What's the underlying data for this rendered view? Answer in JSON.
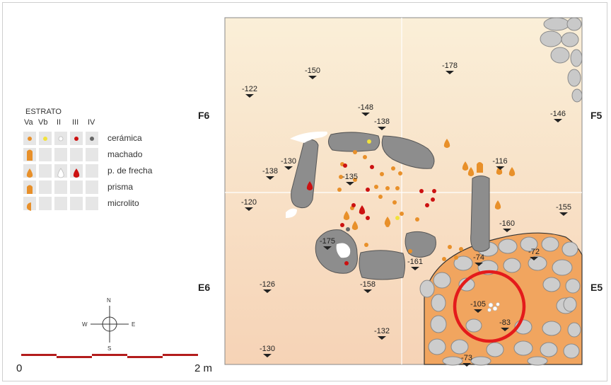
{
  "legend": {
    "title": "ESTRATO",
    "strata": [
      "Va",
      "Vb",
      "II",
      "III",
      "IV"
    ],
    "rows": [
      {
        "label": "cerámica",
        "symbols": [
          "orange-dot",
          "yellow-dot",
          "white-dot",
          "red-dot",
          "grey-dot"
        ]
      },
      {
        "label": "machado",
        "symbols": [
          "orange-axe",
          "",
          "",
          "",
          ""
        ]
      },
      {
        "label": "p. de frecha",
        "symbols": [
          "orange-drop",
          "",
          "white-drop",
          "red-drop",
          ""
        ]
      },
      {
        "label": "prisma",
        "symbols": [
          "orange-prism",
          "",
          "",
          "",
          ""
        ]
      },
      {
        "label": "microlito",
        "symbols": [
          "orange-half",
          "",
          "",
          "",
          ""
        ]
      }
    ]
  },
  "sectors": {
    "f6": "F6",
    "f5": "F5",
    "e6": "E6",
    "e5": "E5"
  },
  "scale": {
    "start": "0",
    "end": "2 m"
  },
  "compass": {
    "n": "N",
    "s": "S",
    "e": "E",
    "w": "W"
  },
  "elevations": [
    "-150",
    "-178",
    "-122",
    "-148",
    "-138",
    "-146",
    "-130",
    "-138",
    "-135",
    "-116",
    "-120",
    "-155",
    "-160",
    "-175",
    "-74",
    "-72",
    "-161",
    "-126",
    "-158",
    "-105",
    "-83",
    "-132",
    "-130",
    "-73"
  ],
  "colors": {
    "map_background": "#f7e3c8",
    "stone_slab": "#8d8d8d",
    "cobble": "#c9c9c9",
    "pit_fill": "#f1a55f",
    "ceramica_orange": "#e8902a",
    "ceramica_yellow": "#f2e23c",
    "red": "#cc1111",
    "highlight_circle": "#e41b1b",
    "scale_bar": "#b31c1c"
  }
}
